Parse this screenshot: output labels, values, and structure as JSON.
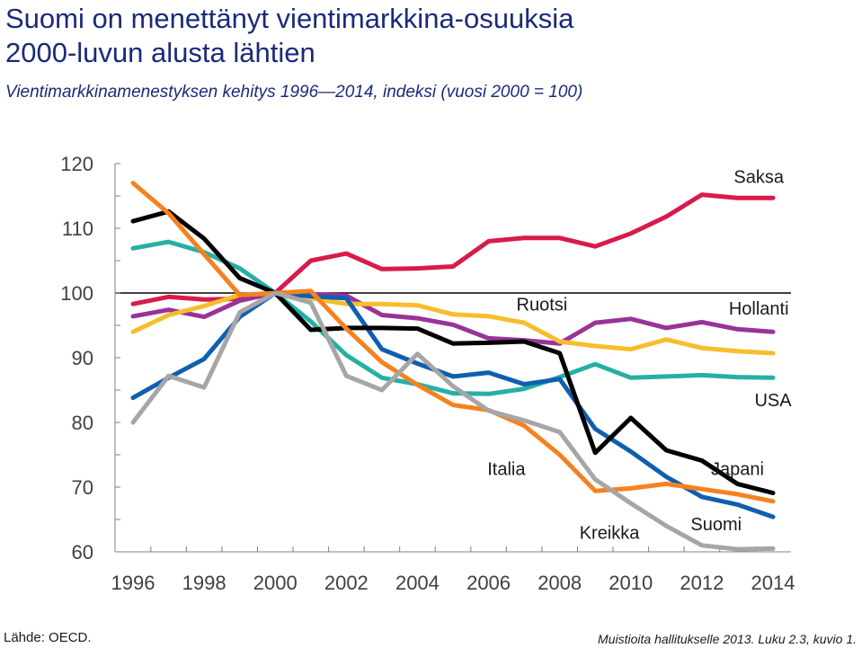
{
  "header": {
    "title_line1": "Suomi on menettänyt vientimarkkina-osuuksia",
    "title_line2": "2000-luvun alusta lähtien",
    "subtitle": "Vientimarkkinamenestyksen kehitys 1996—2014, indeksi (vuosi 2000 = 100)"
  },
  "footer": {
    "source": "Lähde: OECD.",
    "note": "Muistioita hallitukselle 2013. Luku 2.3, kuvio 1."
  },
  "chart_data": {
    "type": "line",
    "title": "",
    "xlabel": "",
    "ylabel": "",
    "x": [
      1996,
      1997,
      1998,
      1999,
      2000,
      2001,
      2002,
      2003,
      2004,
      2005,
      2006,
      2007,
      2008,
      2009,
      2010,
      2011,
      2012,
      2013,
      2014
    ],
    "x_tick_labels": [
      "1996",
      "1998",
      "2000",
      "2002",
      "2004",
      "2006",
      "2008",
      "2010",
      "2012",
      "2014"
    ],
    "y_tick_labels": [
      "120",
      "110",
      "100",
      "90",
      "80",
      "70",
      "60"
    ],
    "ylim": [
      60,
      120
    ],
    "reference_line": 100,
    "grid": false,
    "series": [
      {
        "name": "Saksa",
        "color": "#d81b4a",
        "values": [
          98.3,
          99.4,
          99.0,
          99.1,
          100.0,
          105.0,
          106.1,
          103.7,
          103.8,
          104.1,
          108.0,
          108.5,
          108.5,
          107.2,
          109.2,
          111.8,
          115.2,
          114.7,
          114.7
        ]
      },
      {
        "name": "Hollanti",
        "color": "#993399",
        "values": [
          96.4,
          97.4,
          96.3,
          98.8,
          100.0,
          99.8,
          99.6,
          96.6,
          96.1,
          95.1,
          93.0,
          92.7,
          92.2,
          95.4,
          96.0,
          94.6,
          95.5,
          94.4,
          94.0
        ]
      },
      {
        "name": "Ruotsi",
        "color": "#f6be2c",
        "values": [
          94.0,
          96.6,
          98.0,
          99.7,
          100.0,
          99.2,
          98.3,
          98.3,
          98.1,
          96.7,
          96.4,
          95.4,
          92.5,
          91.8,
          91.3,
          92.8,
          91.5,
          91.0,
          90.7
        ]
      },
      {
        "name": "USA",
        "color": "#26b0a4",
        "values": [
          106.9,
          107.9,
          106.3,
          103.8,
          100.0,
          95.6,
          90.4,
          86.9,
          85.9,
          84.5,
          84.4,
          85.2,
          87.0,
          89.0,
          86.9,
          87.1,
          87.3,
          87.0,
          86.9
        ]
      },
      {
        "name": "Japani",
        "color": "#0f5fb0",
        "values": [
          83.8,
          86.9,
          89.8,
          96.3,
          100.0,
          99.5,
          99.2,
          91.3,
          89.1,
          87.1,
          87.7,
          85.9,
          86.7,
          79.0,
          75.5,
          71.6,
          68.5,
          67.3,
          65.4
        ]
      },
      {
        "name": "Suomi",
        "color": "#000000",
        "values": [
          111.1,
          112.6,
          108.4,
          102.3,
          100.0,
          94.3,
          94.6,
          94.6,
          94.5,
          92.2,
          92.3,
          92.5,
          90.7,
          75.3,
          80.7,
          75.7,
          74.1,
          70.5,
          69.1
        ]
      },
      {
        "name": "Italia",
        "color": "#f5821f",
        "values": [
          117.0,
          112.3,
          106.0,
          99.7,
          100.0,
          100.3,
          94.5,
          89.3,
          85.8,
          82.7,
          81.9,
          79.5,
          75.0,
          69.4,
          69.8,
          70.5,
          69.7,
          68.9,
          67.8
        ]
      },
      {
        "name": "Kreikka",
        "color": "#a6a6a6",
        "values": [
          80.0,
          87.2,
          85.4,
          97.0,
          100.0,
          98.5,
          87.2,
          85.0,
          90.6,
          85.6,
          81.8,
          80.3,
          78.5,
          71.2,
          67.5,
          64.0,
          61.0,
          60.4,
          60.5
        ]
      }
    ],
    "annotations": [
      "Saksa",
      "Ruotsi",
      "Hollanti",
      "USA",
      "Italia",
      "Japani",
      "Kreikka",
      "Suomi"
    ]
  }
}
